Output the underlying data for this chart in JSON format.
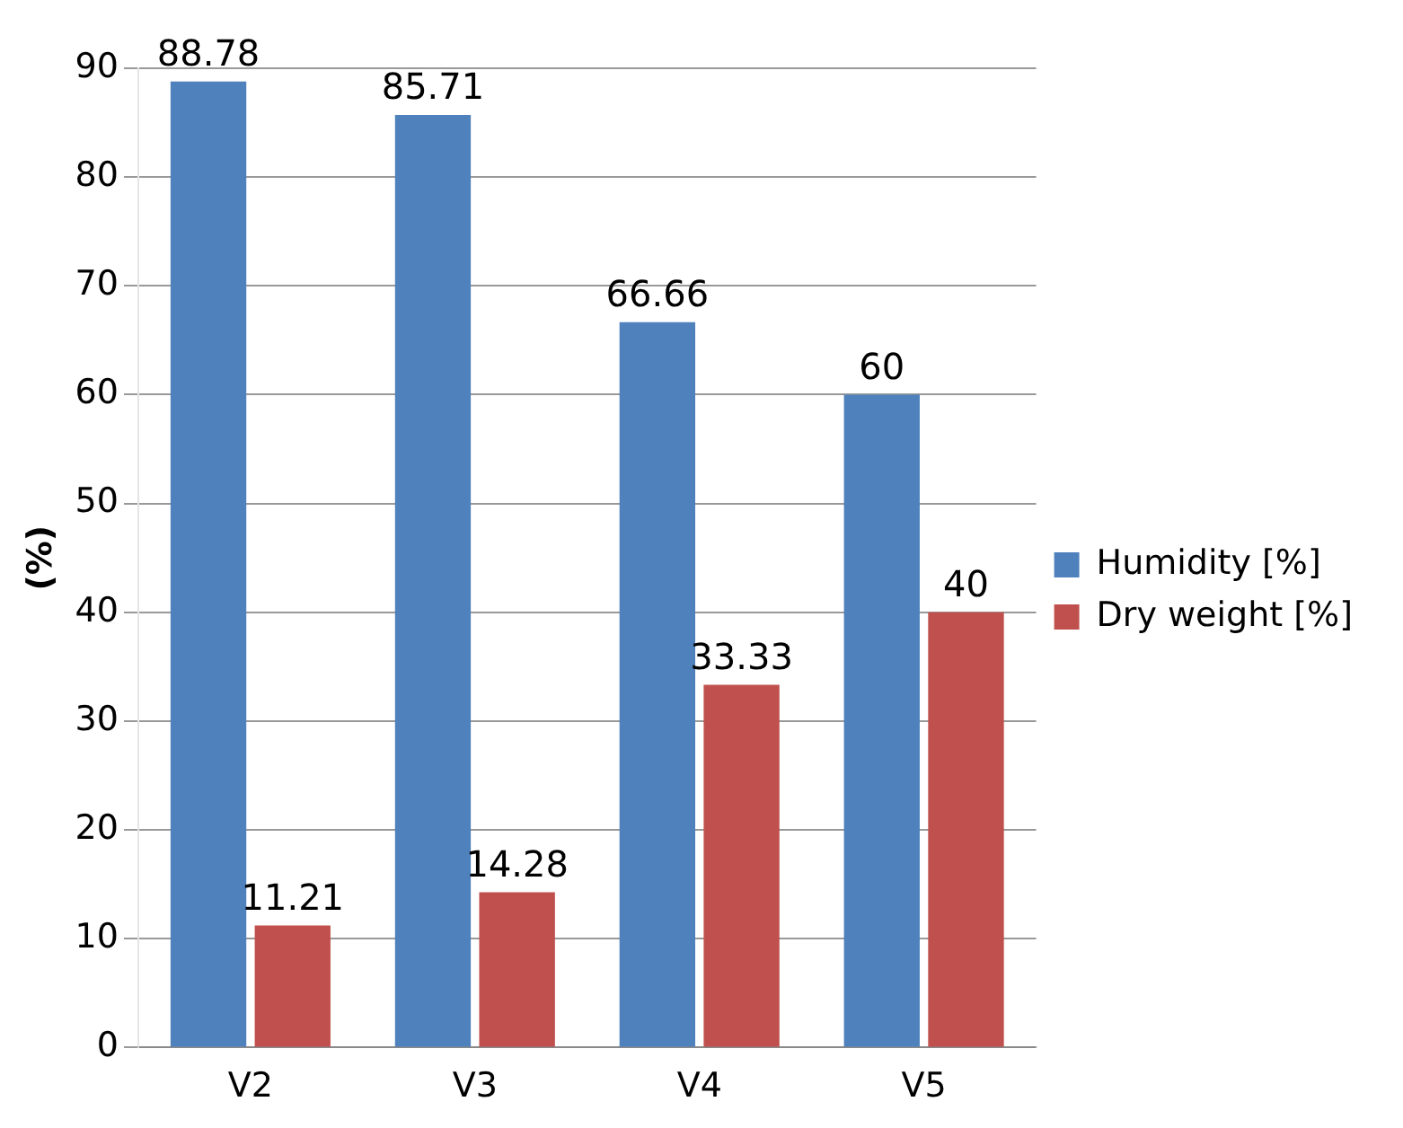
{
  "chart_data": {
    "type": "bar",
    "ylabel": "(%)",
    "categories": [
      "V2",
      "V3",
      "V4",
      "V5"
    ],
    "series": [
      {
        "name": "Humidity [%]",
        "color": "#4f81bd",
        "values": [
          88.78,
          85.71,
          66.66,
          60
        ]
      },
      {
        "name": "Dry weight [%]",
        "color": "#c0504d",
        "values": [
          11.21,
          14.28,
          33.33,
          40
        ]
      }
    ],
    "ylim": [
      0,
      90
    ],
    "yticks": [
      0,
      10,
      20,
      30,
      40,
      50,
      60,
      70,
      80,
      90
    ],
    "grid": "y",
    "legend": "right",
    "data_labels": true
  }
}
